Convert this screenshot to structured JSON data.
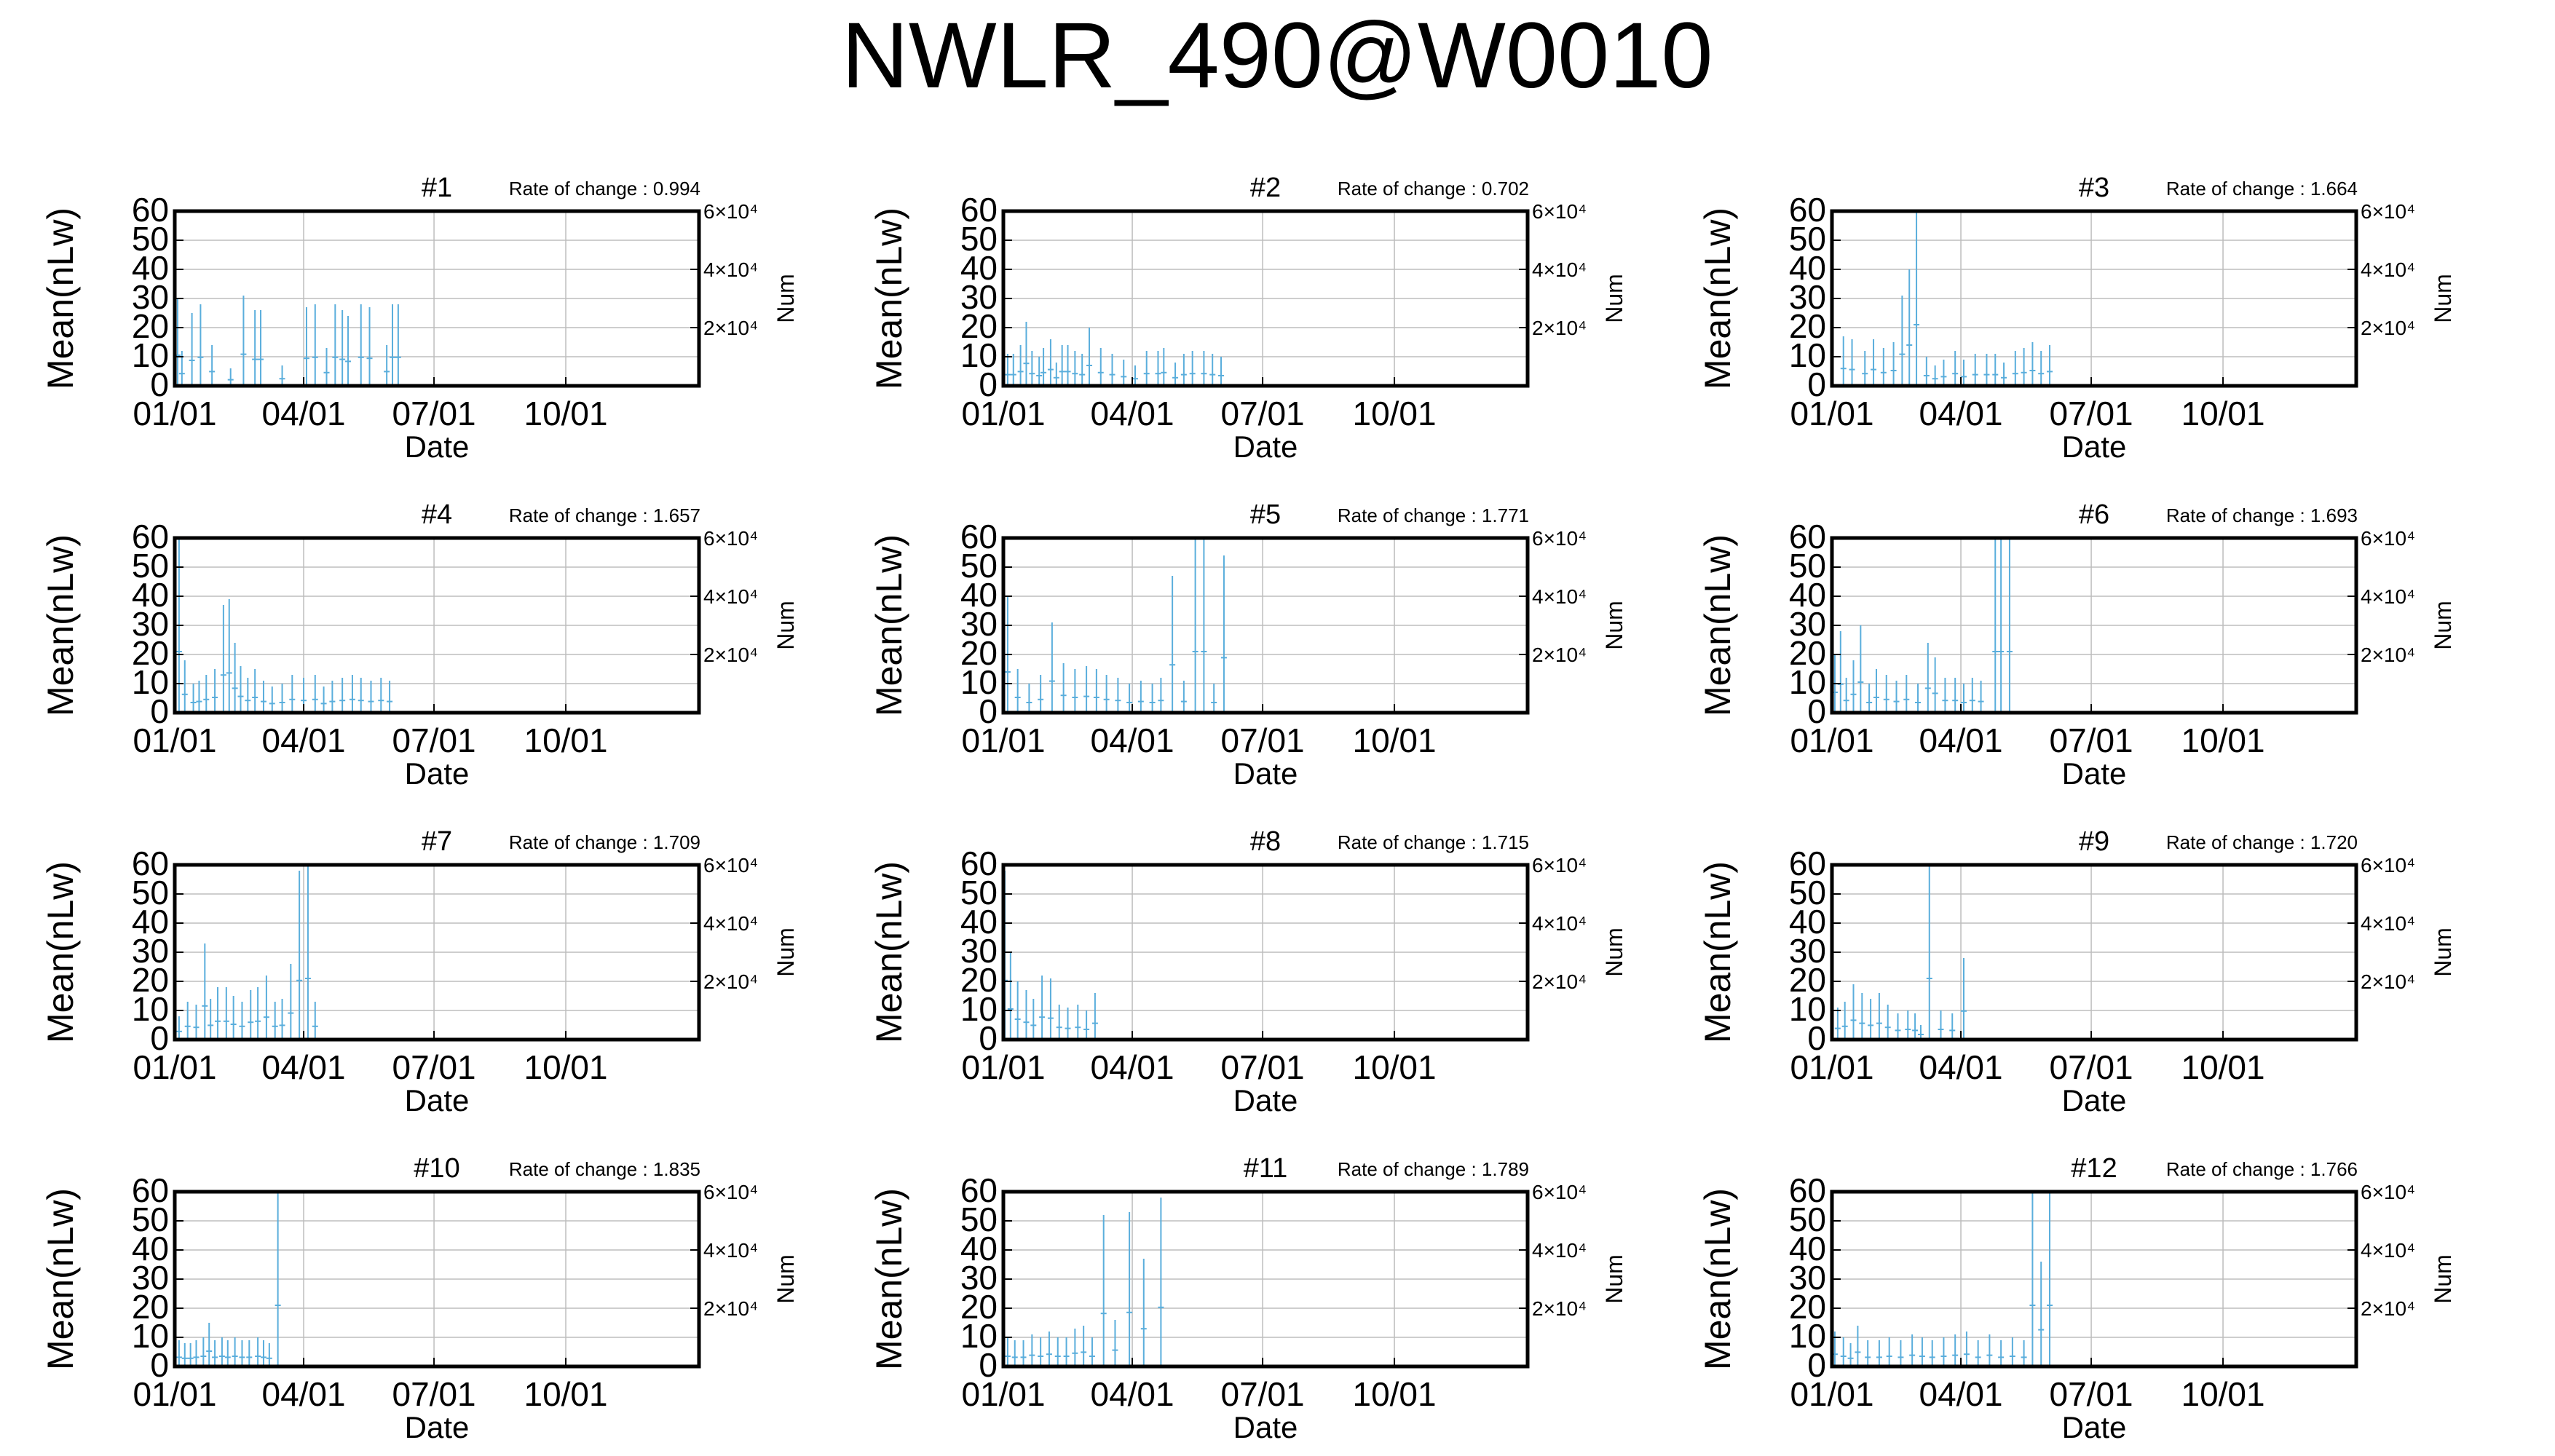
{
  "title": "NWLR_490@W0010",
  "chart_data": [
    {
      "type": "bar",
      "title": "#1",
      "rate_label": "Rate of change : 0.994",
      "xlabel": "Date",
      "ylabel": "Mean(nLw)",
      "y2label": "Num",
      "xticks": [
        "01/01",
        "04/01",
        "07/01",
        "10/01"
      ],
      "ylim": [
        0,
        60
      ],
      "yticks": [
        0,
        10,
        20,
        30,
        40,
        50,
        60
      ],
      "y2ticks": [
        "2×10⁴",
        "4×10⁴",
        "6×10⁴"
      ],
      "grid": true,
      "x": [
        2,
        5,
        12,
        18,
        26,
        39,
        48,
        56,
        60,
        75,
        92,
        98,
        106,
        112,
        117,
        121,
        130,
        136,
        148,
        152,
        156
      ],
      "y": [
        30,
        12,
        25,
        28,
        14,
        6,
        31,
        26,
        26,
        7,
        27,
        28,
        13,
        28,
        26,
        24,
        28,
        27,
        14,
        28,
        28
      ]
    },
    {
      "type": "bar",
      "title": "#2",
      "rate_label": "Rate of change : 0.702",
      "xlabel": "Date",
      "ylabel": "Mean(nLw)",
      "y2label": "Num",
      "xticks": [
        "01/01",
        "04/01",
        "07/01",
        "10/01"
      ],
      "ylim": [
        0,
        60
      ],
      "yticks": [
        0,
        10,
        20,
        30,
        40,
        50,
        60
      ],
      "y2ticks": [
        "2×10⁴",
        "4×10⁴",
        "6×10⁴"
      ],
      "grid": true,
      "x": [
        3,
        7,
        12,
        16,
        20,
        25,
        28,
        33,
        37,
        41,
        45,
        50,
        55,
        60,
        68,
        76,
        84,
        92,
        100,
        108,
        112,
        120,
        126,
        132,
        140,
        146,
        152
      ],
      "y": [
        11,
        11,
        14,
        22,
        12,
        10,
        13,
        16,
        8,
        14,
        14,
        12,
        11,
        20,
        13,
        11,
        9,
        7,
        12,
        12,
        13,
        8,
        11,
        12,
        12,
        11,
        10
      ]
    },
    {
      "type": "bar",
      "title": "#3",
      "rate_label": "Rate of change : 1.664",
      "xlabel": "Date",
      "ylabel": "Mean(nLw)",
      "y2label": "Num",
      "xticks": [
        "01/01",
        "04/01",
        "07/01",
        "10/01"
      ],
      "ylim": [
        0,
        60
      ],
      "yticks": [
        0,
        10,
        20,
        30,
        40,
        50,
        60
      ],
      "y2ticks": [
        "2×10⁴",
        "4×10⁴",
        "6×10⁴"
      ],
      "grid": true,
      "x": [
        8,
        14,
        23,
        29,
        36,
        43,
        49,
        54,
        59,
        66,
        72,
        78,
        86,
        92,
        100,
        108,
        114,
        120,
        128,
        134,
        140,
        146,
        152
      ],
      "y": [
        17,
        16,
        12,
        16,
        13,
        15,
        31,
        40,
        60,
        10,
        7,
        9,
        12,
        9,
        11,
        11,
        11,
        8,
        12,
        13,
        15,
        12,
        14
      ]
    },
    {
      "type": "bar",
      "title": "#4",
      "rate_label": "Rate of change : 1.657",
      "xlabel": "Date",
      "ylabel": "Mean(nLw)",
      "y2label": "Num",
      "xticks": [
        "01/01",
        "04/01",
        "07/01",
        "10/01"
      ],
      "ylim": [
        0,
        60
      ],
      "yticks": [
        0,
        10,
        20,
        30,
        40,
        50,
        60
      ],
      "y2ticks": [
        "2×10⁴",
        "4×10⁴",
        "6×10⁴"
      ],
      "grid": true,
      "x": [
        3,
        7,
        13,
        17,
        22,
        28,
        34,
        38,
        42,
        46,
        51,
        56,
        62,
        68,
        75,
        82,
        90,
        98,
        104,
        110,
        117,
        124,
        130,
        137,
        144,
        150
      ],
      "y": [
        60,
        18,
        10,
        11,
        13,
        15,
        37,
        39,
        24,
        16,
        12,
        15,
        11,
        9,
        10,
        13,
        12,
        13,
        9,
        11,
        12,
        13,
        12,
        11,
        12,
        11
      ]
    },
    {
      "type": "bar",
      "title": "#5",
      "rate_label": "Rate of change : 1.771",
      "xlabel": "Date",
      "ylabel": "Mean(nLw)",
      "y2label": "Num",
      "xticks": [
        "01/01",
        "04/01",
        "07/01",
        "10/01"
      ],
      "ylim": [
        0,
        60
      ],
      "yticks": [
        0,
        10,
        20,
        30,
        40,
        50,
        60
      ],
      "y2ticks": [
        "2×10⁴",
        "4×10⁴",
        "6×10⁴"
      ],
      "grid": true,
      "x": [
        3,
        10,
        18,
        26,
        34,
        42,
        50,
        58,
        65,
        72,
        80,
        88,
        96,
        104,
        110,
        118,
        126,
        134,
        140,
        147,
        154
      ],
      "y": [
        40,
        15,
        10,
        13,
        31,
        17,
        15,
        16,
        15,
        13,
        12,
        10,
        11,
        10,
        12,
        47,
        11,
        60,
        60,
        10,
        54
      ]
    },
    {
      "type": "bar",
      "title": "#6",
      "rate_label": "Rate of change : 1.693",
      "xlabel": "Date",
      "ylabel": "Mean(nLw)",
      "y2label": "Num",
      "xticks": [
        "01/01",
        "04/01",
        "07/01",
        "10/01"
      ],
      "ylim": [
        0,
        60
      ],
      "yticks": [
        0,
        10,
        20,
        30,
        40,
        50,
        60
      ],
      "y2ticks": [
        "2×10⁴",
        "4×10⁴",
        "6×10⁴"
      ],
      "grid": true,
      "x": [
        2,
        6,
        10,
        15,
        20,
        26,
        31,
        38,
        45,
        52,
        60,
        67,
        72,
        79,
        86,
        92,
        98,
        104,
        114,
        118,
        124
      ],
      "y": [
        20,
        28,
        12,
        18,
        30,
        10,
        15,
        13,
        11,
        13,
        10,
        24,
        19,
        12,
        12,
        10,
        12,
        11,
        60,
        60,
        60
      ]
    },
    {
      "type": "bar",
      "title": "#7",
      "rate_label": "Rate of change : 1.709",
      "xlabel": "Date",
      "ylabel": "Mean(nLw)",
      "y2label": "Num",
      "xticks": [
        "01/01",
        "04/01",
        "07/01",
        "10/01"
      ],
      "ylim": [
        0,
        60
      ],
      "yticks": [
        0,
        10,
        20,
        30,
        40,
        50,
        60
      ],
      "y2ticks": [
        "2×10⁴",
        "4×10⁴",
        "6×10⁴"
      ],
      "grid": true,
      "x": [
        3,
        9,
        15,
        21,
        25,
        30,
        36,
        41,
        47,
        53,
        58,
        64,
        70,
        75,
        81,
        87,
        93,
        98
      ],
      "y": [
        8,
        13,
        12,
        33,
        14,
        18,
        18,
        15,
        13,
        17,
        18,
        22,
        13,
        14,
        26,
        58,
        60,
        13
      ]
    },
    {
      "type": "bar",
      "title": "#8",
      "rate_label": "Rate of change : 1.715",
      "xlabel": "Date",
      "ylabel": "Mean(nLw)",
      "y2label": "Num",
      "xticks": [
        "01/01",
        "04/01",
        "07/01",
        "10/01"
      ],
      "ylim": [
        0,
        60
      ],
      "yticks": [
        0,
        10,
        20,
        30,
        40,
        50,
        60
      ],
      "y2ticks": [
        "2×10⁴",
        "4×10⁴",
        "6×10⁴"
      ],
      "grid": true,
      "x": [
        1,
        5,
        10,
        16,
        21,
        27,
        33,
        39,
        45,
        52,
        58,
        64
      ],
      "y": [
        58,
        30,
        20,
        17,
        14,
        22,
        21,
        12,
        11,
        12,
        10,
        16
      ]
    },
    {
      "type": "bar",
      "title": "#9",
      "rate_label": "Rate of change : 1.720",
      "xlabel": "Date",
      "ylabel": "Mean(nLw)",
      "y2label": "Num",
      "xticks": [
        "01/01",
        "04/01",
        "07/01",
        "10/01"
      ],
      "ylim": [
        0,
        60
      ],
      "yticks": [
        0,
        10,
        20,
        30,
        40,
        50,
        60
      ],
      "y2ticks": [
        "2×10⁴",
        "4×10⁴",
        "6×10⁴"
      ],
      "grid": true,
      "x": [
        4,
        9,
        15,
        21,
        27,
        33,
        39,
        46,
        53,
        58,
        62,
        68,
        76,
        84,
        92
      ],
      "y": [
        11,
        13,
        19,
        16,
        14,
        16,
        12,
        9,
        10,
        9,
        5,
        60,
        10,
        9,
        28
      ]
    },
    {
      "type": "bar",
      "title": "#10",
      "rate_label": "Rate of change : 1.835",
      "xlabel": "Date",
      "ylabel": "Mean(nLw)",
      "y2label": "Num",
      "xticks": [
        "01/01",
        "04/01",
        "07/01",
        "10/01"
      ],
      "ylim": [
        0,
        60
      ],
      "yticks": [
        0,
        10,
        20,
        30,
        40,
        50,
        60
      ],
      "y2ticks": [
        "2×10⁴",
        "4×10⁴",
        "6×10⁴"
      ],
      "grid": true,
      "x": [
        3,
        7,
        11,
        15,
        20,
        24,
        28,
        33,
        37,
        42,
        47,
        52,
        58,
        62,
        66,
        72
      ],
      "y": [
        9,
        8,
        8,
        9,
        10,
        15,
        9,
        10,
        9,
        10,
        9,
        9,
        10,
        9,
        8,
        60
      ]
    },
    {
      "type": "bar",
      "title": "#11",
      "rate_label": "Rate of change : 1.789",
      "xlabel": "Date",
      "ylabel": "Mean(nLw)",
      "y2label": "Num",
      "xticks": [
        "01/01",
        "04/01",
        "07/01",
        "10/01"
      ],
      "ylim": [
        0,
        60
      ],
      "yticks": [
        0,
        10,
        20,
        30,
        40,
        50,
        60
      ],
      "y2ticks": [
        "2×10⁴",
        "4×10⁴",
        "6×10⁴"
      ],
      "grid": true,
      "x": [
        3,
        8,
        14,
        20,
        26,
        32,
        38,
        44,
        50,
        56,
        62,
        70,
        78,
        88,
        98,
        110
      ],
      "y": [
        10,
        9,
        9,
        11,
        10,
        12,
        10,
        10,
        13,
        14,
        10,
        52,
        16,
        53,
        37,
        58
      ]
    },
    {
      "type": "bar",
      "title": "#12",
      "rate_label": "Rate of change : 1.766",
      "xlabel": "Date",
      "ylabel": "Mean(nLw)",
      "y2label": "Num",
      "xticks": [
        "01/01",
        "04/01",
        "07/01",
        "10/01"
      ],
      "ylim": [
        0,
        60
      ],
      "yticks": [
        0,
        10,
        20,
        30,
        40,
        50,
        60
      ],
      "y2ticks": [
        "2×10⁴",
        "4×10⁴",
        "6×10⁴"
      ],
      "grid": true,
      "x": [
        2,
        8,
        13,
        18,
        25,
        33,
        40,
        48,
        56,
        63,
        70,
        78,
        86,
        94,
        102,
        110,
        118,
        126,
        134,
        140,
        146,
        152
      ],
      "y": [
        12,
        10,
        8,
        14,
        9,
        9,
        10,
        9,
        11,
        10,
        9,
        10,
        11,
        12,
        9,
        11,
        9,
        10,
        9,
        60,
        36,
        60
      ]
    }
  ]
}
